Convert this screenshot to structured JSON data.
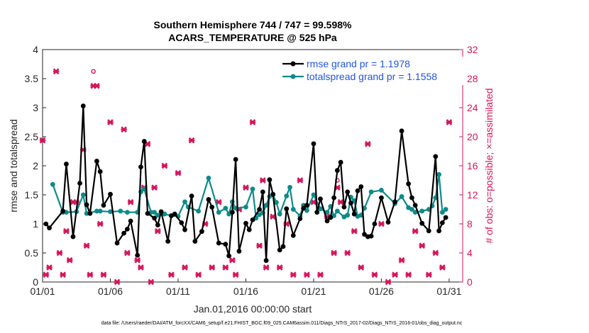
{
  "chart_data": {
    "type": "line",
    "title": "Southern Hemisphere 744 / 747 = 99.598%",
    "subtitle": "ACARS_TEMPERATURE @ 525 hPa",
    "xlabel": "Jan.01,2016 00:00:00 start",
    "ylabel": "rmse and totalspread",
    "ylabel_right": "# of obs: o=possible; ×=assimilated",
    "xlim": [
      1,
      32
    ],
    "ylim": [
      0,
      4
    ],
    "ylim_right": [
      0,
      32
    ],
    "x_ticks": [
      1,
      6,
      11,
      16,
      21,
      26,
      31
    ],
    "x_tick_labels": [
      "01/01",
      "01/06",
      "01/11",
      "01/16",
      "01/21",
      "01/26",
      "01/31"
    ],
    "y_ticks": [
      0,
      0.5,
      1,
      1.5,
      2,
      2.5,
      3,
      3.5,
      4
    ],
    "y_tick_labels": [
      "0",
      "0.5",
      "1",
      "1.5",
      "2",
      "2.5",
      "3",
      "3.5",
      "4"
    ],
    "y_right_ticks": [
      0,
      4,
      8,
      12,
      16,
      20,
      24,
      28,
      32
    ],
    "y_right_tick_labels": [
      "0",
      "4",
      "8",
      "12",
      "16",
      "20",
      "24",
      "28",
      "32"
    ],
    "grid": false,
    "legend_position": "top-right",
    "colors": {
      "rmse": "#000000",
      "spread": "#0e8a8a",
      "obs": "#d6155c",
      "legend_text": "#1f55e0"
    },
    "series": [
      {
        "name": "rmse grand pr = 1.1978",
        "x": [
          1.25,
          1.5,
          2.5,
          2.75,
          3.25,
          3.75,
          4,
          4.25,
          4.5,
          5,
          5.25,
          5.5,
          6,
          6.5,
          7,
          7.25,
          7.5,
          8,
          8.25,
          8.5,
          8.75,
          9.25,
          9.5,
          9.75,
          10.25,
          10.5,
          10.75,
          11.25,
          11.5,
          12,
          12.25,
          12.75,
          13.25,
          13.5,
          14,
          14.5,
          14.75,
          15,
          15.25,
          15.5,
          16,
          16.25,
          16.5,
          17,
          17.25,
          17.5,
          17.75,
          18,
          18.5,
          18.75,
          19,
          19.5,
          20,
          20.25,
          20.5,
          21,
          21.25,
          21.5,
          22,
          22.25,
          22.5,
          22.75,
          23,
          23.25,
          23.5,
          23.75,
          24,
          24.25,
          24.5,
          24.75,
          25,
          25.25,
          25.5,
          26,
          26.5,
          27,
          27.5,
          28,
          28.25,
          28.5,
          29,
          29.5,
          30,
          30.25,
          30.5,
          30.75
        ],
        "y": [
          1.0,
          0.93,
          1.22,
          2.03,
          0.78,
          1.7,
          3.03,
          1.33,
          1.18,
          2.08,
          1.9,
          1.32,
          1.51,
          0.67,
          0.84,
          0.91,
          1.05,
          0.46,
          1.98,
          2.42,
          1.18,
          1.1,
          0.98,
          1.21,
          0.7,
          1.14,
          1.17,
          1.02,
          0.9,
          1.48,
          0.7,
          0.87,
          1.42,
          1.29,
          0.67,
          0.65,
          0.45,
          1.2,
          2.11,
          0.53,
          1.01,
          0.9,
          1.07,
          1.25,
          1.55,
          0.37,
          1.76,
          1.51,
          0.55,
          0.61,
          1.26,
          0.8,
          1.09,
          1.27,
          1.32,
          2.38,
          1.2,
          1.43,
          1.05,
          1.11,
          1.45,
          1.92,
          2.06,
          1.29,
          1.55,
          1.36,
          1.17,
          1.57,
          1.64,
          0.82,
          0.78,
          0.79,
          1.0,
          1.45,
          1.03,
          1.38,
          2.6,
          1.69,
          1.45,
          1.32,
          1.01,
          0.88,
          2.16,
          0.88,
          1.02,
          1.11
        ]
      },
      {
        "name": "totalspread grand pr = 1.1558",
        "x": [
          1.75,
          2.5,
          2.75,
          3.5,
          4,
          4.25,
          5,
          5.25,
          6,
          6.75,
          7.25,
          8,
          8.25,
          8.5,
          9,
          9.25,
          9.5,
          10,
          10.5,
          11,
          11.5,
          11.75,
          12.5,
          13.25,
          14,
          14.5,
          14.75,
          15,
          15.25,
          16,
          16.5,
          16.75,
          17,
          17.25,
          17.5,
          17.75,
          18,
          18.25,
          18.5,
          19,
          19.25,
          19.5,
          20,
          20.25,
          20.5,
          21,
          21.5,
          22,
          22.25,
          22.5,
          22.75,
          23.25,
          23.5,
          23.75,
          24,
          24.25,
          24.5,
          24.75,
          25.25,
          26,
          27,
          27.5,
          28,
          28.25,
          28.5,
          29,
          29.5,
          29.75,
          30,
          30.25,
          30.5,
          30.75
        ],
        "y": [
          1.68,
          1.2,
          1.2,
          1.21,
          1.5,
          1.18,
          1.22,
          1.22,
          1.21,
          1.22,
          1.2,
          1.2,
          1.55,
          1.6,
          1.2,
          1.2,
          1.15,
          1.17,
          1.14,
          1.13,
          1.38,
          1.29,
          1.22,
          1.79,
          1.2,
          1.27,
          1.17,
          1.38,
          1.27,
          1.29,
          1.6,
          1.1,
          1.16,
          1.19,
          1.32,
          1.47,
          1.5,
          1.37,
          1.17,
          1.48,
          1.63,
          1.25,
          1.14,
          1.32,
          1.23,
          1.5,
          1.26,
          1.2,
          1.3,
          1.14,
          1.22,
          1.12,
          1.15,
          1.46,
          1.4,
          1.13,
          1.15,
          1.27,
          1.55,
          1.58,
          1.35,
          1.47,
          1.28,
          1.25,
          1.2,
          1.22,
          1.25,
          1.31,
          1.45,
          1.85,
          1.2,
          1.25
        ]
      },
      {
        "name": "# of obs assimilated (×)",
        "x": [
          1.0,
          1.25,
          1.5,
          2.0,
          2.25,
          2.5,
          2.75,
          3.0,
          3.25,
          3.5,
          4.0,
          4.25,
          4.5,
          5.0,
          5.25,
          5.5,
          6.0,
          6.5,
          7.0,
          7.25,
          7.5,
          8.0,
          8.25,
          8.5,
          8.75,
          9.0,
          9.25,
          9.5,
          10.0,
          10.5,
          11.0,
          11.5,
          12.0,
          12.5,
          13.0,
          13.5,
          14.0,
          14.5,
          15.0,
          15.25,
          15.5,
          16.0,
          16.5,
          17.0,
          17.25,
          17.5,
          18.0,
          18.5,
          19.0,
          19.5,
          20.0,
          20.5,
          21.0,
          21.5,
          22.0,
          22.5,
          23.0,
          23.5,
          24.0,
          24.5,
          25.0,
          25.5,
          26.0,
          26.5,
          27.0,
          27.5,
          28.0,
          28.5,
          29.0,
          29.5,
          30.0,
          30.5,
          31.0
        ],
        "y": [
          19.5,
          1.0,
          2.0,
          29.0,
          4.0,
          1.0,
          7.0,
          3.0,
          11.0,
          11.0,
          18.2,
          5.0,
          1.0,
          27.0,
          8.0,
          1.0,
          22.0,
          0.0,
          21.0,
          4.0,
          11.0,
          3.0,
          2.0,
          13.0,
          19.0,
          0.0,
          13.0,
          7.0,
          16.0,
          1.0,
          15.0,
          2.0,
          19.5,
          1.0,
          8.0,
          2.0,
          11.0,
          2.0,
          3.0,
          1.0,
          10.0,
          13.0,
          22.0,
          5.0,
          14.0,
          2.0,
          9.0,
          2.0,
          8.0,
          1.0,
          14.0,
          1.0,
          11.0,
          1.0,
          9.0,
          4.0,
          11.0,
          4.0,
          7.0,
          2.0,
          19.0,
          1.0,
          8.0,
          0.0,
          1.0,
          3.0,
          1.0,
          7.0,
          5.0,
          1.0,
          4.0,
          2.0,
          22.0
        ]
      }
    ],
    "markers": {
      "assimilated_outlier": {
        "x": 4.75,
        "y_right": 27.0,
        "symbol": "×"
      },
      "possible_outlier_1": {
        "x": 4.75,
        "y_right": 29.0,
        "symbol": "o"
      },
      "possible_outlier_2": {
        "x": 22.75,
        "y_right": 14.0,
        "symbol": "o"
      },
      "assimilated_outlier_2": {
        "x": 22.75,
        "y_right": 13.0,
        "symbol": "×"
      }
    },
    "footnote": "data file: /Users/raeder/DAI/ATM_forcXX/CAM6_setup/f.e21.FHIST_BGC.f09_025.CAM6assim.011/Diags_NTrS_2017-02/Diags_NTrS_2016-01/obs_diag_output.nc"
  }
}
